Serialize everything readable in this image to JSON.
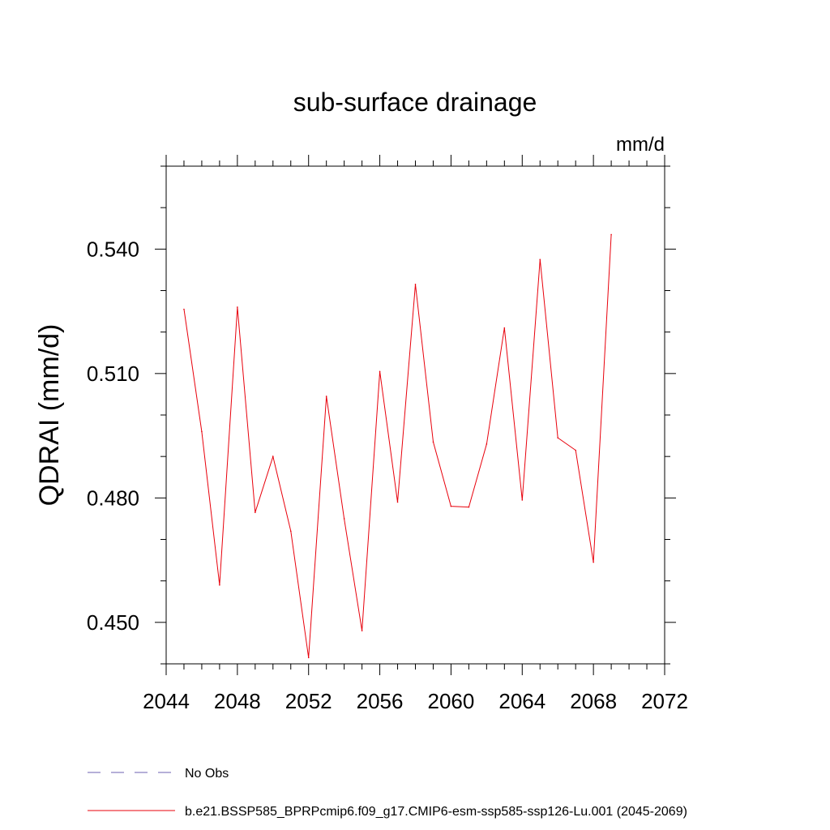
{
  "chart_data": {
    "type": "line",
    "title": "sub-surface drainage",
    "units_label": "mm/d",
    "ylabel": "QDRAI  (mm/d)",
    "xlabel": "",
    "xlim": [
      2044,
      2072
    ],
    "ylim": [
      0.44,
      0.56
    ],
    "x_ticks": [
      2044,
      2048,
      2052,
      2056,
      2060,
      2064,
      2068,
      2072
    ],
    "y_ticks": [
      0.45,
      0.48,
      0.51,
      0.54
    ],
    "y_tick_labels": [
      "0.450",
      "0.480",
      "0.510",
      "0.540"
    ],
    "grid": false,
    "series": [
      {
        "name": "b.e21.BSSP585_BPRPcmip6.f09_g17.CMIP6-esm-ssp585-ssp126-Lu.001 (2045-2069)",
        "color": "#e8000b",
        "style": "solid",
        "x": [
          2045,
          2046,
          2047,
          2048,
          2049,
          2050,
          2051,
          2052,
          2053,
          2054,
          2055,
          2056,
          2057,
          2058,
          2059,
          2060,
          2061,
          2062,
          2063,
          2064,
          2065,
          2066,
          2067,
          2068,
          2069
        ],
        "y": [
          0.5255,
          0.496,
          0.459,
          0.526,
          0.4765,
          0.49,
          0.472,
          0.4415,
          0.5045,
          0.475,
          0.448,
          0.5105,
          0.479,
          0.5315,
          0.4935,
          0.478,
          0.4778,
          0.493,
          0.521,
          0.4795,
          0.5375,
          0.4945,
          0.4915,
          0.4645,
          0.5435
        ]
      }
    ],
    "legend": {
      "placement": "bottom",
      "entries": [
        {
          "label": "No Obs",
          "color": "#6e5fb0",
          "style": "dashed"
        },
        {
          "label": "b.e21.BSSP585_BPRPcmip6.f09_g17.CMIP6-esm-ssp585-ssp126-Lu.001 (2045-2069)",
          "color": "#e8000b",
          "style": "solid"
        }
      ]
    }
  }
}
